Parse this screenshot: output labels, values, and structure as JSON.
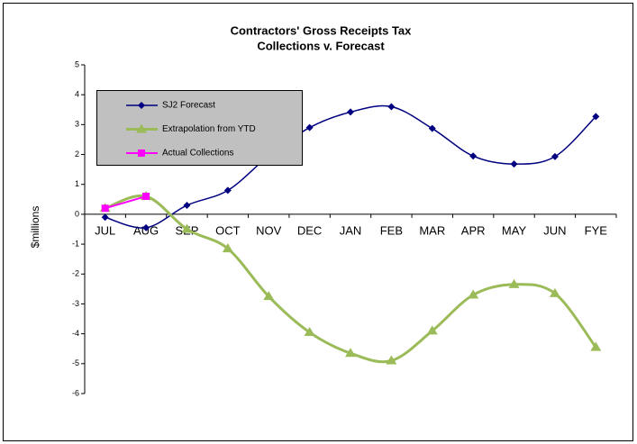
{
  "chart_data": {
    "type": "line",
    "title": [
      "Contractors' Gross Receipts Tax",
      "Collections v. Forecast"
    ],
    "y_label": "$millions",
    "categories": [
      "JUL",
      "AUG",
      "SEP",
      "OCT",
      "NOV",
      "DEC",
      "JAN",
      "FEB",
      "MAR",
      "APR",
      "MAY",
      "JUN",
      "FYE"
    ],
    "series": [
      {
        "name": "SJ2 Forecast",
        "color": "#000080",
        "marker": "diamond",
        "smooth": true,
        "values": [
          -0.1,
          -0.45,
          0.3,
          0.8,
          1.95,
          2.9,
          3.42,
          3.6,
          2.87,
          1.95,
          1.68,
          1.93,
          3.27
        ]
      },
      {
        "name": "Extrapolation from YTD",
        "color": "#9bbb59",
        "marker": "triangle",
        "smooth": true,
        "values": [
          0.2,
          0.6,
          -0.5,
          -1.15,
          -2.75,
          -3.95,
          -4.65,
          -4.9,
          -3.9,
          -2.7,
          -2.35,
          -2.65,
          -4.45
        ]
      },
      {
        "name": "Actual Collections",
        "color": "#ff00ff",
        "marker": "square",
        "smooth": false,
        "values": [
          0.2,
          0.6,
          null,
          null,
          null,
          null,
          null,
          null,
          null,
          null,
          null,
          null,
          null
        ]
      }
    ],
    "ylim": [
      -6,
      5
    ],
    "yticks": [
      -6,
      -5,
      -4,
      -3,
      -2,
      -1,
      0,
      1,
      2,
      3,
      4,
      5
    ],
    "grid": false,
    "legend": "top-left"
  }
}
